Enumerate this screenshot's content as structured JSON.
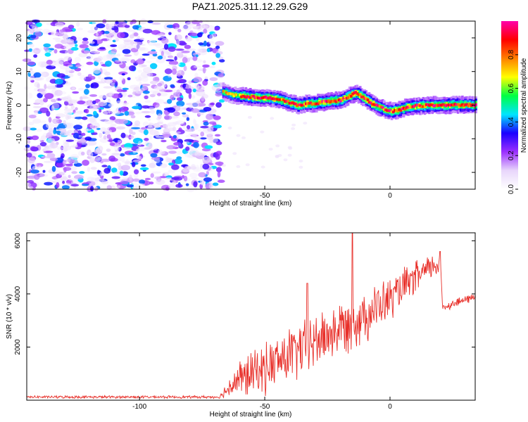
{
  "figure": {
    "title": "PAZ1.2025.311.12.29.G29"
  },
  "chart_data": [
    {
      "type": "heatmap",
      "name": "spectrogram",
      "xlabel": "Height of straight line (km)",
      "ylabel": "Frequency (Hz)",
      "xlim": [
        -145,
        34
      ],
      "ylim": [
        -25,
        25
      ],
      "x_ticks": [
        -100,
        -50,
        0
      ],
      "y_ticks": [
        -20,
        -10,
        0,
        10,
        20
      ],
      "colorbar": {
        "label": "Normalized spectral amplitude",
        "range": [
          0.0,
          1.0
        ],
        "ticks": [
          0.0,
          0.2,
          0.4,
          0.6,
          0.8
        ],
        "tick_labels": [
          "0.0",
          "0.2",
          "0.4",
          "0.6",
          "0.8"
        ],
        "colormap": [
          "#ffffff",
          "#e8d6fb",
          "#9b30ff",
          "#1a00ff",
          "#00e5ff",
          "#00ff44",
          "#ffff00",
          "#ff8000",
          "#ff0000",
          "#ff00aa"
        ]
      },
      "noise_region_x": [
        -145,
        -67
      ],
      "noise_level": 0.25,
      "ridge_points": [
        {
          "x": -67,
          "y": 4.0
        },
        {
          "x": -63,
          "y": 3.0
        },
        {
          "x": -58,
          "y": 2.6
        },
        {
          "x": -52,
          "y": 2.2
        },
        {
          "x": -47,
          "y": 2.0
        },
        {
          "x": -43,
          "y": 1.4
        },
        {
          "x": -40,
          "y": 0.6
        },
        {
          "x": -37,
          "y": 0.0
        },
        {
          "x": -34,
          "y": 0.4
        },
        {
          "x": -31,
          "y": 0.5
        },
        {
          "x": -28,
          "y": 0.8
        },
        {
          "x": -24,
          "y": 1.2
        },
        {
          "x": -20,
          "y": 1.5
        },
        {
          "x": -17,
          "y": 2.6
        },
        {
          "x": -14,
          "y": 3.6
        },
        {
          "x": -11,
          "y": 2.4
        },
        {
          "x": -8,
          "y": 0.6
        },
        {
          "x": -5,
          "y": -0.5
        },
        {
          "x": -2,
          "y": -1.5
        },
        {
          "x": 1,
          "y": -1.8
        },
        {
          "x": 4,
          "y": -1.3
        },
        {
          "x": 7,
          "y": -0.4
        },
        {
          "x": 12,
          "y": -0.2
        },
        {
          "x": 18,
          "y": 0.0
        },
        {
          "x": 25,
          "y": 0.1
        },
        {
          "x": 34,
          "y": 0.0
        }
      ],
      "ridge_amplitude": 0.85
    },
    {
      "type": "line",
      "name": "snr",
      "xlabel": "Height of straight line (km)",
      "ylabel": "SNR (10 * v/v)",
      "xlim": [
        -145,
        34
      ],
      "ylim": [
        0,
        6300
      ],
      "x_ticks": [
        -100,
        -50,
        0
      ],
      "y_ticks": [
        2000,
        4000,
        6000
      ],
      "color": "#e8302a",
      "trend": [
        {
          "x": -145,
          "y": 120
        },
        {
          "x": -68,
          "y": 120
        },
        {
          "x": -62,
          "y": 700
        },
        {
          "x": -50,
          "y": 1200
        },
        {
          "x": -40,
          "y": 1700
        },
        {
          "x": -30,
          "y": 2200
        },
        {
          "x": -20,
          "y": 2700
        },
        {
          "x": -10,
          "y": 3200
        },
        {
          "x": 0,
          "y": 3800
        },
        {
          "x": 10,
          "y": 4600
        },
        {
          "x": 20,
          "y": 5200
        },
        {
          "x": 21,
          "y": 3500
        },
        {
          "x": 34,
          "y": 3900
        }
      ],
      "fluctuation": [
        {
          "x": -145,
          "amp": 60
        },
        {
          "x": -68,
          "amp": 60
        },
        {
          "x": -60,
          "amp": 900
        },
        {
          "x": -40,
          "amp": 1300
        },
        {
          "x": -10,
          "amp": 1200
        },
        {
          "x": 20,
          "amp": 500
        },
        {
          "x": 21,
          "amp": 200
        },
        {
          "x": 34,
          "amp": 200
        }
      ],
      "spikes": [
        {
          "x": -33,
          "y": 4400
        },
        {
          "x": -15,
          "y": 6300
        },
        {
          "x": 20,
          "y": 5600
        }
      ]
    }
  ]
}
